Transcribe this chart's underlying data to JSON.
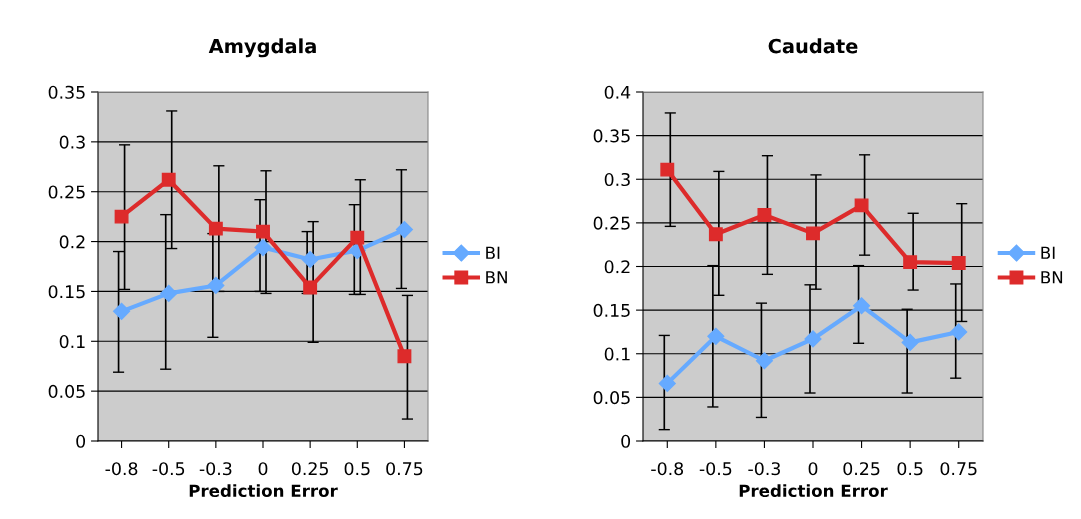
{
  "chart_data": [
    {
      "type": "line",
      "title": "Amygdala",
      "xlabel": "Prediction Error",
      "categories": [
        "-0.8",
        "-0.5",
        "-0.3",
        "0",
        "0.25",
        "0.5",
        "0.75"
      ],
      "ylim": [
        0,
        0.35
      ],
      "yticks": [
        0,
        0.05,
        0.1,
        0.15,
        0.2,
        0.25,
        0.3,
        0.35
      ],
      "grid": "y",
      "legend": "right",
      "series": [
        {
          "name": "BI",
          "color": "#66aaff",
          "marker": "diamond",
          "values": [
            0.13,
            0.148,
            0.156,
            0.194,
            0.182,
            0.191,
            0.212
          ],
          "errors": [
            [
              0.069,
              0.19
            ],
            [
              0.072,
              0.227
            ],
            [
              0.104,
              0.208
            ],
            [
              0.15,
              0.242
            ],
            [
              0.148,
              0.21
            ],
            [
              0.147,
              0.237
            ],
            [
              0.153,
              0.272
            ]
          ]
        },
        {
          "name": "BN",
          "color": "#dd2b2b",
          "marker": "square",
          "values": [
            0.225,
            0.262,
            0.213,
            0.21,
            0.154,
            0.204,
            0.085
          ],
          "errors": [
            [
              0.152,
              0.297
            ],
            [
              0.193,
              0.331
            ],
            [
              0.15,
              0.276
            ],
            [
              0.148,
              0.271
            ],
            [
              0.099,
              0.22
            ],
            [
              0.147,
              0.262
            ],
            [
              0.022,
              0.146
            ]
          ]
        }
      ]
    },
    {
      "type": "line",
      "title": "Caudate",
      "xlabel": "Prediction Error",
      "categories": [
        "-0.8",
        "-0.5",
        "-0.3",
        "0",
        "0.25",
        "0.5",
        "0.75"
      ],
      "ylim": [
        0,
        0.4
      ],
      "yticks": [
        0,
        0.05,
        0.1,
        0.15,
        0.2,
        0.25,
        0.3,
        0.35,
        0.4
      ],
      "grid": "y",
      "legend": "right",
      "series": [
        {
          "name": "BI",
          "color": "#66aaff",
          "marker": "diamond",
          "values": [
            0.066,
            0.12,
            0.092,
            0.117,
            0.155,
            0.113,
            0.125
          ],
          "errors": [
            [
              0.013,
              0.121
            ],
            [
              0.039,
              0.201
            ],
            [
              0.027,
              0.158
            ],
            [
              0.055,
              0.179
            ],
            [
              0.112,
              0.201
            ],
            [
              0.055,
              0.151
            ],
            [
              0.072,
              0.18
            ]
          ]
        },
        {
          "name": "BN",
          "color": "#dd2b2b",
          "marker": "square",
          "values": [
            0.311,
            0.237,
            0.259,
            0.238,
            0.27,
            0.205,
            0.204
          ],
          "errors": [
            [
              0.246,
              0.376
            ],
            [
              0.167,
              0.309
            ],
            [
              0.191,
              0.327
            ],
            [
              0.174,
              0.305
            ],
            [
              0.213,
              0.328
            ],
            [
              0.173,
              0.261
            ],
            [
              0.137,
              0.272
            ]
          ]
        }
      ]
    }
  ]
}
